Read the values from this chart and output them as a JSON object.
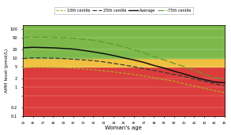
{
  "title": "",
  "xlabel": "Woman's age",
  "ylabel": "AMH level (pmol/L)",
  "ages": [
    25,
    26,
    27,
    28,
    29,
    30,
    31,
    32,
    33,
    34,
    35,
    36,
    37,
    38,
    39,
    40,
    41,
    42,
    43,
    44,
    45
  ],
  "centile_75": [
    50,
    51,
    51,
    50,
    49,
    47,
    44,
    40,
    35,
    29,
    24,
    19,
    15,
    11,
    8.5,
    6.5,
    5.0,
    3.8,
    2.8,
    2.1,
    1.9
  ],
  "average": [
    22,
    23,
    22.5,
    22,
    21,
    20,
    18,
    16,
    14,
    12,
    10,
    8.5,
    7,
    5.5,
    4.5,
    3.5,
    2.8,
    2.2,
    1.8,
    1.5,
    1.4
  ],
  "centile_25": [
    9.5,
    10,
    10,
    9.8,
    9.5,
    9,
    8.5,
    8,
    7.3,
    6.5,
    5.7,
    5,
    4.3,
    3.7,
    3.2,
    2.7,
    2.3,
    1.9,
    1.6,
    1.3,
    1.1
  ],
  "centile_10": [
    4.5,
    4.8,
    4.8,
    4.7,
    4.6,
    4.4,
    4.2,
    3.9,
    3.6,
    3.3,
    3.0,
    2.7,
    2.4,
    2.1,
    1.8,
    1.6,
    1.3,
    1.1,
    0.9,
    0.75,
    0.65
  ],
  "background_colors": {
    "green": "#7db94a",
    "yellow": "#f0c040",
    "red": "#dc3c3c"
  },
  "line_colors": {
    "centile_75": "#5a9e28",
    "average": "#111111",
    "centile_25": "#333333",
    "centile_10": "#aab020"
  },
  "ylim_low": 0.1,
  "ylim_high": 130,
  "green_lower": 10.0,
  "yellow_lower": 5.0,
  "yticks": [
    0.1,
    0.2,
    0.5,
    1,
    2,
    5,
    10,
    20,
    50,
    100
  ],
  "ytick_labels": [
    "0.1",
    "0.2",
    "",
    "1",
    "2",
    "5",
    "10",
    "20",
    "50",
    "100"
  ]
}
